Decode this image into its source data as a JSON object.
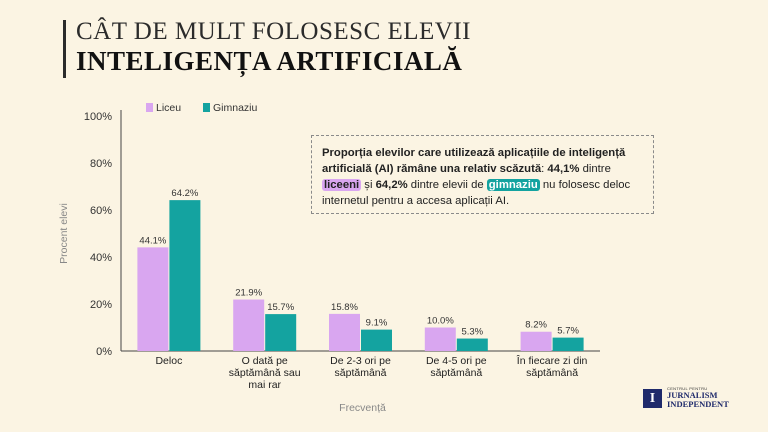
{
  "header": {
    "title_line1": "CÂT DE MULT FOLOSESC ELEVII",
    "title_line2": "INTELIGENȚA ARTIFICIALĂ"
  },
  "callout": {
    "part1": "Proporția elevilor care utilizează aplicațiile de inteligență artificială (AI) rămâne una relativ scăzută",
    "part2": ": ",
    "value1": "44,1%",
    "part3": " dintre ",
    "hl1": "liceeni",
    "part4": " și ",
    "value2": "64,2%",
    "part5": " dintre elevii de ",
    "hl2": "gimnaziu",
    "part6": " nu folosesc deloc internetul pentru a accesa aplicații AI."
  },
  "logo": {
    "small": "CENTRUL PENTRU",
    "line1": "JURNALISM",
    "line2": "INDEPENDENT",
    "mark": "I"
  },
  "chart_data": {
    "type": "bar",
    "categories": [
      [
        "Deloc"
      ],
      [
        "O dată pe",
        "săptămână sau",
        "mai rar"
      ],
      [
        "De 2-3 ori pe",
        "săptămână"
      ],
      [
        "De 4-5 ori pe",
        "săptămână"
      ],
      [
        "În fiecare zi din",
        "săptămână"
      ]
    ],
    "series": [
      {
        "name": "Liceu",
        "color": "#d9a6f0",
        "values": [
          44.1,
          21.9,
          15.8,
          10.0,
          8.2
        ],
        "labels": [
          "44.1%",
          "21.9%",
          "15.8%",
          "10.0%",
          "8.2%"
        ]
      },
      {
        "name": "Gimnaziu",
        "color": "#14a3a0",
        "values": [
          64.2,
          15.7,
          9.1,
          5.3,
          5.7
        ],
        "labels": [
          "64.2%",
          "15.7%",
          "9.1%",
          "5.3%",
          "5.7%"
        ]
      }
    ],
    "yticks": [
      "0%",
      "20%",
      "40%",
      "60%",
      "80%",
      "100%"
    ],
    "ylim": [
      0,
      100
    ],
    "xlabel": "Frecvență",
    "ylabel": "Procent elevi",
    "grid": false,
    "legend": "top-left"
  }
}
